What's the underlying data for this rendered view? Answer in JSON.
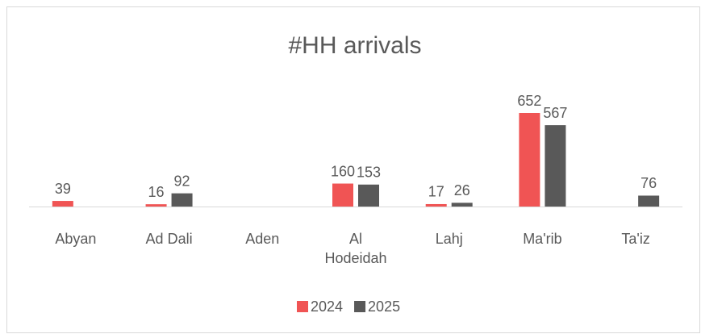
{
  "chart_data": {
    "type": "bar",
    "title": "#HH arrivals",
    "categories": [
      "Abyan",
      "Ad Dali",
      "Aden",
      "Al Hodeidah",
      "Lahj",
      "Ma'rib",
      "Ta'iz"
    ],
    "series": [
      {
        "name": "2024",
        "color": "#f05454",
        "values": [
          39,
          16,
          null,
          160,
          17,
          652,
          null
        ]
      },
      {
        "name": "2025",
        "color": "#595959",
        "values": [
          null,
          92,
          null,
          153,
          26,
          567,
          76
        ]
      }
    ],
    "legend": "bottom"
  }
}
